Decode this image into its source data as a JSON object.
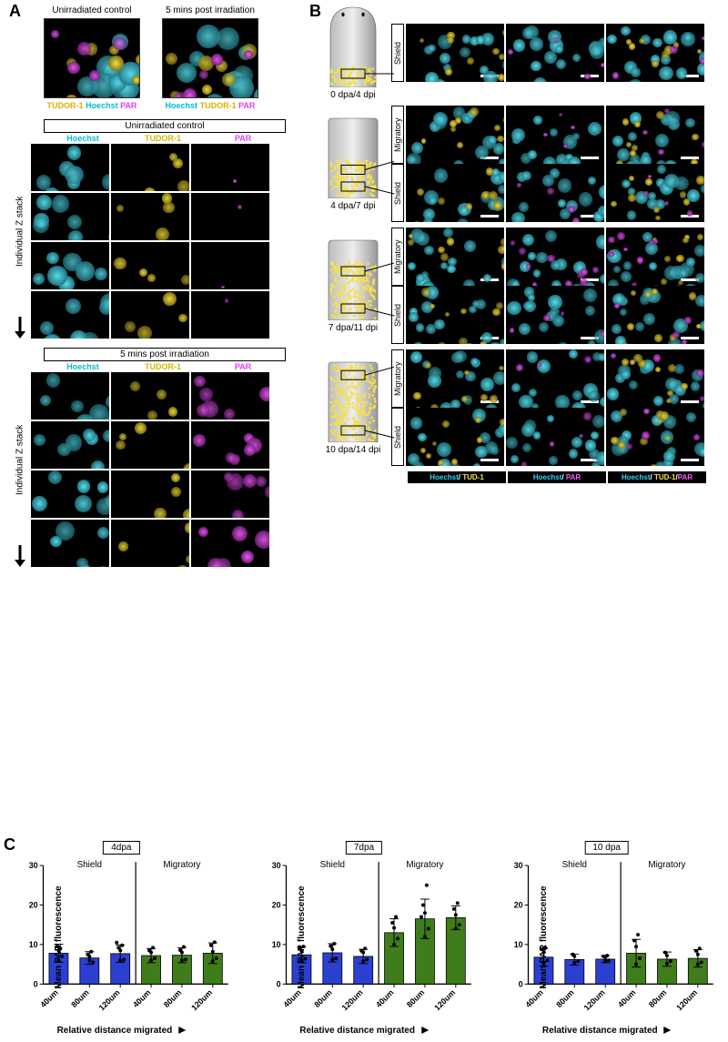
{
  "panelA": {
    "top": [
      {
        "title": "Unirradiated control",
        "legend_order": [
          "TUDOR-1",
          "Hoechst",
          "PAR"
        ]
      },
      {
        "title": "5 mins post irradiation",
        "legend_order": [
          "Hoechst",
          "TUDOR-1",
          "PAR"
        ]
      }
    ],
    "zstacks": [
      {
        "header": "Unirradiated control",
        "side_label": "Individual Z stack",
        "channels": [
          "Hoechst",
          "TUDOR-1",
          "PAR"
        ],
        "rows": 4
      },
      {
        "header": "5 mins post irradiation",
        "side_label": "Individual Z stack",
        "channels": [
          "Hoechst",
          "TUDOR-1",
          "PAR"
        ],
        "rows": 4
      }
    ],
    "channel_colors": {
      "Hoechst": "#33d6ee",
      "TUDOR-1": "#f5e04a",
      "PAR": "#f060f5"
    }
  },
  "panelB": {
    "timepoints": [
      {
        "label": "0 dpa/4 dpi",
        "rows": [
          {
            "side": "Shield"
          }
        ],
        "dots_fill": 0.22
      },
      {
        "label": "4 dpa/7 dpi",
        "rows": [
          {
            "side": "Migratory"
          },
          {
            "side": "Shield"
          }
        ],
        "dots_fill": 0.45
      },
      {
        "label": "7 dpa/11 dpi",
        "rows": [
          {
            "side": "Migratory"
          },
          {
            "side": "Shield"
          }
        ],
        "dots_fill": 0.7
      },
      {
        "label": "10 dpa/14 dpi",
        "rows": [
          {
            "side": "Migratory"
          },
          {
            "side": "Shield"
          }
        ],
        "dots_fill": 0.92
      }
    ],
    "legend": [
      "Hoechst/ TUD-1",
      "Hoechst/ PAR",
      "Hoechst/ TUD-1/PAR"
    ],
    "legend_parts": [
      [
        [
          "Hoechst",
          "c"
        ],
        [
          "/ ",
          "w"
        ],
        [
          "TUD-1",
          "y"
        ]
      ],
      [
        [
          "Hoechst",
          "c"
        ],
        [
          "/ ",
          "w"
        ],
        [
          "PAR",
          "m"
        ]
      ],
      [
        [
          "Hoechst",
          "c"
        ],
        [
          "/ ",
          "w"
        ],
        [
          "TUD-1",
          "y"
        ],
        [
          "/",
          "w"
        ],
        [
          "PAR",
          "m"
        ]
      ]
    ]
  },
  "panelC": {
    "ylabel": "Mean PAR fluorescence",
    "xlabel": "Relative distance migrated",
    "y_max": 30,
    "y_ticks": [
      0,
      10,
      20,
      30
    ],
    "categories": [
      "40um",
      "80um",
      "120um",
      "40um",
      "80um",
      "120um"
    ],
    "region_labels": [
      "Shield",
      "Migratory"
    ],
    "colors": {
      "shield": "#2b3fd1",
      "migratory": "#3f7d1a"
    },
    "charts": [
      {
        "title": "4dpa",
        "means": [
          7.8,
          6.6,
          7.7,
          7.2,
          7.3,
          7.8
        ],
        "errs": [
          2.3,
          1.6,
          2.2,
          1.8,
          1.9,
          2.6
        ],
        "points": [
          [
            6.0,
            9.5,
            7.0,
            8.5,
            9.0
          ],
          [
            6.0,
            7.5,
            5.5,
            7.0,
            8.2
          ],
          [
            6.0,
            9.2,
            6.2,
            8.5,
            9.8,
            10.5
          ],
          [
            6.0,
            8.5,
            6.5,
            8.0,
            9.2
          ],
          [
            6.0,
            8.6,
            6.2,
            8.0,
            9.4
          ],
          [
            5.8,
            9.8,
            6.5,
            8.2,
            10.6
          ]
        ]
      },
      {
        "title": "7dpa",
        "means": [
          7.4,
          7.9,
          7.0,
          13.0,
          16.5,
          16.8
        ],
        "errs": [
          2.0,
          2.3,
          1.8,
          3.5,
          5.0,
          3.0
        ],
        "points": [
          [
            6.0,
            9.0,
            6.4,
            8.4,
            9.5
          ],
          [
            6.2,
            9.6,
            6.5,
            8.8,
            10.2
          ],
          [
            5.8,
            8.4,
            6.2,
            8.0,
            9.0
          ],
          [
            10.0,
            15.5,
            11.5,
            14.2,
            17.0
          ],
          [
            12.0,
            20.0,
            14.0,
            18.0,
            25.0,
            17.0
          ],
          [
            14.0,
            19.0,
            15.0,
            17.5,
            20.5
          ]
        ]
      },
      {
        "title": "10 dpa",
        "means": [
          6.8,
          6.2,
          6.3,
          7.8,
          6.3,
          6.5
        ],
        "errs": [
          2.2,
          1.4,
          0.9,
          3.5,
          1.8,
          2.2
        ],
        "points": [
          [
            5.2,
            8.8,
            6.0,
            8.0,
            9.2
          ],
          [
            5.4,
            7.5,
            5.8,
            7.0
          ],
          [
            5.8,
            7.0,
            6.0,
            6.8,
            7.2
          ],
          [
            5.0,
            11.0,
            6.5,
            9.5,
            12.5
          ],
          [
            5.2,
            8.0,
            5.8,
            7.2
          ],
          [
            5.0,
            8.4,
            5.5,
            7.5,
            9.0
          ]
        ]
      }
    ]
  }
}
